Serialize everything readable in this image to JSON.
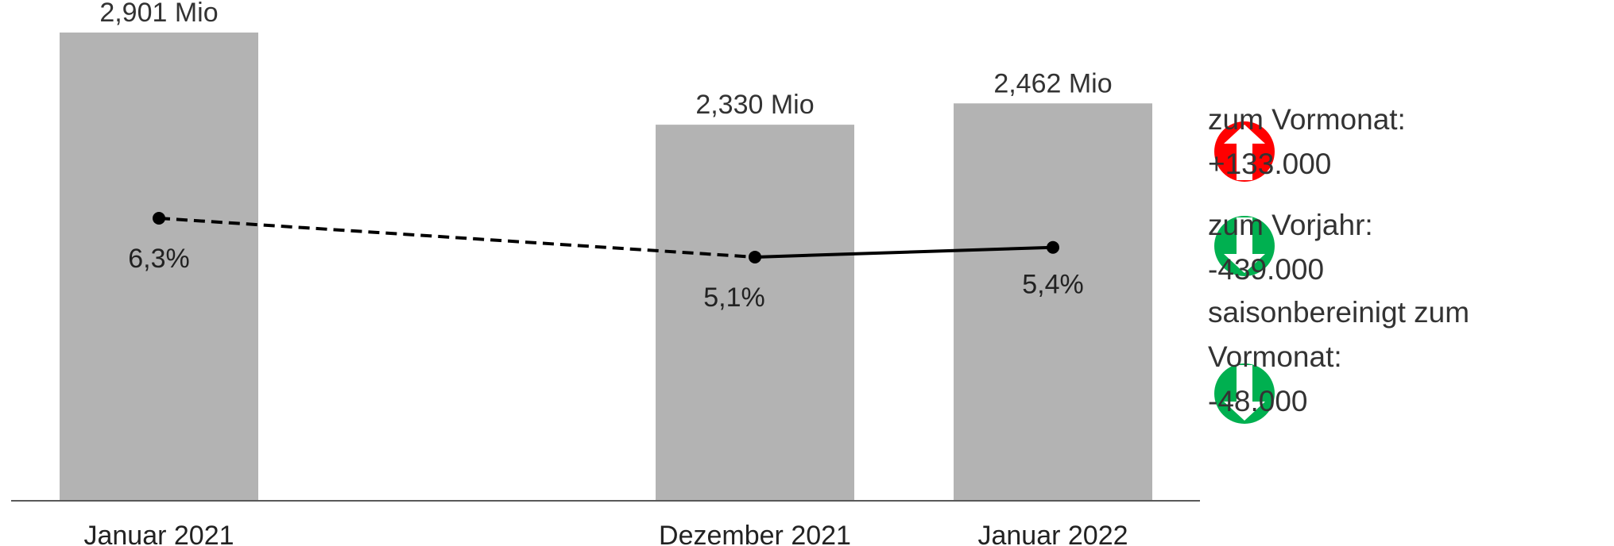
{
  "chart_data": {
    "type": "bar",
    "categories": [
      "Januar 2021",
      "Dezember 2021",
      "Januar 2022"
    ],
    "x_positions": [
      0,
      3,
      4.5
    ],
    "bars": {
      "values": [
        2.901,
        2.33,
        2.462
      ],
      "labels": [
        "2,901 Mio",
        "2,330 Mio",
        "2,462 Mio"
      ],
      "unit": "Mio",
      "color": "#b3b3b3"
    },
    "line": {
      "values": [
        6.3,
        5.1,
        5.4
      ],
      "labels": [
        "6,3%",
        "5,1%",
        "5,4%"
      ],
      "unit": "%",
      "color": "#000000",
      "segment_styles": [
        "dashed",
        "solid"
      ]
    },
    "grid": false,
    "legend": "none"
  },
  "changes": [
    {
      "icon": "arrow-up-icon",
      "color": "#ff0000",
      "lines": [
        "zum Vormonat:",
        "+133.000"
      ]
    },
    {
      "icon": "arrow-down-icon",
      "color": "#00b050",
      "lines": [
        "zum Vorjahr:",
        "-439.000"
      ]
    },
    {
      "icon": "arrow-down-icon",
      "color": "#00b050",
      "lines": [
        "saisonbereinigt zum",
        "Vormonat:",
        "-48.000"
      ]
    }
  ]
}
